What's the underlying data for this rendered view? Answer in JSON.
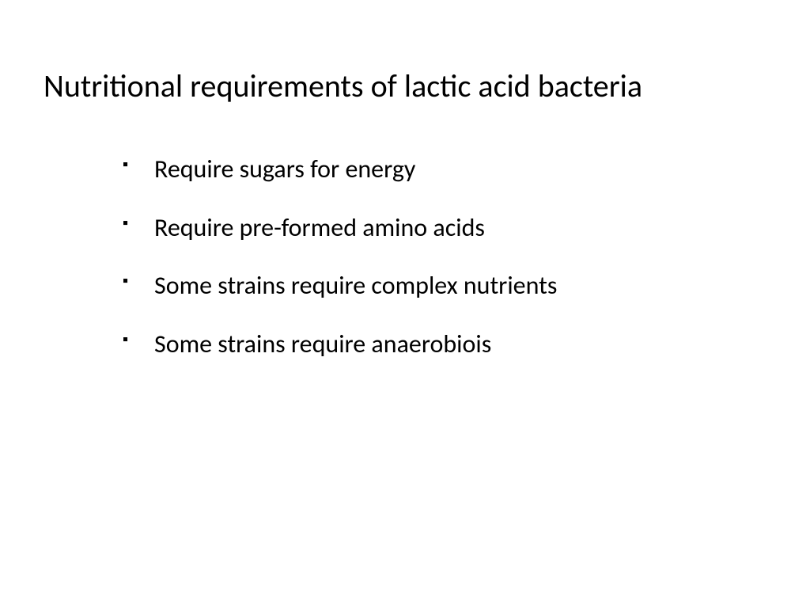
{
  "slide": {
    "title": "Nutritional requirements of lactic acid bacteria",
    "bullets": [
      "Require sugars for energy",
      "Require pre-formed amino acids",
      "Some strains require complex nutrients",
      "Some strains require anaerobiois"
    ],
    "background_color": "#ffffff",
    "text_color": "#000000",
    "title_fontsize": 40,
    "bullet_fontsize": 32
  }
}
